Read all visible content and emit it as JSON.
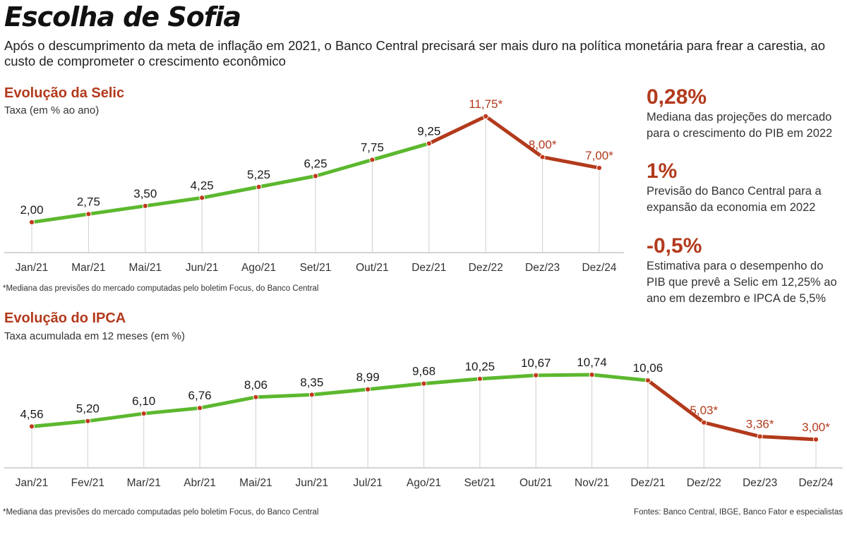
{
  "header": {
    "title": "Escolha de Sofia",
    "subtitle": "Após o descumprimento da meta de inflação em 2021, o Banco Central precisará ser mais duro na política monetária para frear a carestia, ao custo de comprometer o crescimento econômico"
  },
  "selic": {
    "title": "Evolução da Selic",
    "subtitle": "Taxa (em % ao ano)",
    "note": "*Mediana das previsões do mercado computadas pelo boletim Focus, do Banco Central"
  },
  "ipca": {
    "title": "Evolução do IPCA",
    "subtitle": "Taxa acumulada em 12 meses (em %)",
    "note": "*Mediana das previsões do mercado computadas pelo boletim Focus, do Banco Central",
    "sources": "Fontes: Banco Central, IBGE, Banco Fator e especialistas"
  },
  "side": {
    "stats": [
      {
        "value": "0,28%",
        "text": "Mediana das projeções do mercado para o crescimento do PIB em 2022"
      },
      {
        "value": "1%",
        "text": "Previsão do Banco Central para a expansão da economia em 2022"
      },
      {
        "value": "-0,5%",
        "text": "Estimativa para o desempenho do PIB que prevê a Selic em 12,25% ao ano em dezembro e IPCA de 5,5%"
      }
    ]
  },
  "colors": {
    "actual": "#5cb82e",
    "projected": "#b23a1c",
    "point": "#c0391b",
    "grid": "#cfcfcf"
  },
  "chart_data": [
    {
      "type": "line",
      "title": "Evolução da Selic",
      "ylabel": "Taxa (em % ao ano)",
      "categories": [
        "Jan/21",
        "Mar/21",
        "Mai/21",
        "Jun/21",
        "Ago/21",
        "Set/21",
        "Out/21",
        "Dez/21",
        "Dez/22",
        "Dez/23",
        "Dez/24"
      ],
      "values": [
        2.0,
        2.75,
        3.5,
        4.25,
        5.25,
        6.25,
        7.75,
        9.25,
        11.75,
        8.0,
        7.0
      ],
      "labels": [
        "2,00",
        "2,75",
        "3,50",
        "4,25",
        "5,25",
        "6,25",
        "7,75",
        "9,25",
        "11,75*",
        "8,00*",
        "7,00*"
      ],
      "projected_from_index": 7,
      "ylim": [
        0.5,
        12
      ]
    },
    {
      "type": "line",
      "title": "Evolução do IPCA",
      "ylabel": "Taxa acumulada em 12 meses (em %)",
      "categories": [
        "Jan/21",
        "Fev/21",
        "Mar/21",
        "Abr/21",
        "Mai/21",
        "Jun/21",
        "Jul/21",
        "Ago/21",
        "Set/21",
        "Out/21",
        "Nov/21",
        "Dez/21",
        "Dez/22",
        "Dez/23",
        "Dez/24"
      ],
      "values": [
        4.56,
        5.2,
        6.1,
        6.76,
        8.06,
        8.35,
        8.99,
        9.68,
        10.25,
        10.67,
        10.74,
        10.06,
        5.03,
        3.36,
        3.0
      ],
      "labels": [
        "4,56",
        "5,20",
        "6,10",
        "6,76",
        "8,06",
        "8,35",
        "8,99",
        "9,68",
        "10,25",
        "10,67",
        "10,74",
        "10,06",
        "5,03*",
        "3,36*",
        "3,00*"
      ],
      "projected_from_index": 11,
      "ylim": [
        1.3,
        11.5
      ]
    }
  ]
}
